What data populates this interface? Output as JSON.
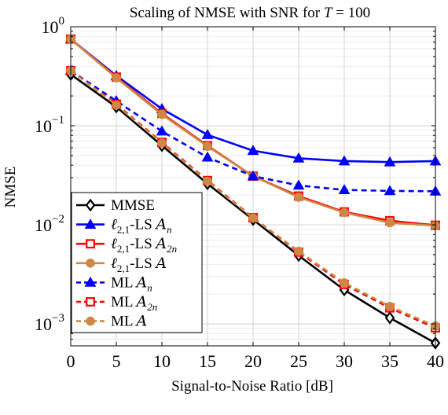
{
  "chart_data": {
    "type": "line",
    "title": "Scaling of NMSE with SNR for T = 100",
    "title_parts": {
      "prefix": "Scaling of NMSE with SNR for ",
      "var": "T",
      "suffix": " = 100"
    },
    "xlabel": "Signal-to-Noise Ratio [dB]",
    "ylabel": "NMSE",
    "xlim": [
      0,
      40
    ],
    "ylim": [
      0.0006,
      1
    ],
    "yscale": "log",
    "grid": true,
    "legend_position": "bottom-left",
    "x_ticks": [
      "0",
      "5",
      "10",
      "15",
      "20",
      "25",
      "30",
      "35",
      "40"
    ],
    "y_ticks": [
      {
        "value": 0.001,
        "base": "10",
        "exp": "−3"
      },
      {
        "value": 0.01,
        "base": "10",
        "exp": "−2"
      },
      {
        "value": 0.1,
        "base": "10",
        "exp": "−1"
      },
      {
        "value": 1,
        "base": "10",
        "exp": "0"
      }
    ],
    "x": [
      0,
      5,
      10,
      15,
      20,
      25,
      30,
      35,
      40
    ],
    "series": [
      {
        "name": "MMSE",
        "legend": {
          "text": "MMSE",
          "sub": "",
          "cal": "",
          "calsub": ""
        },
        "color": "#000000",
        "dash": "solid",
        "marker": "diamond",
        "fill": "#ffffff",
        "values": [
          0.33,
          0.155,
          0.063,
          0.026,
          0.0113,
          0.0049,
          0.0022,
          0.00115,
          0.00064
        ]
      },
      {
        "name": "ℓ2,1-LS An",
        "legend": {
          "text": "ℓ",
          "sub": "2,1",
          "rest": "-LS ",
          "cal": "A",
          "calsub": "n"
        },
        "color": "#0000ff",
        "dash": "solid",
        "marker": "triangle",
        "fill": "#0000ff",
        "values": [
          0.75,
          0.32,
          0.148,
          0.081,
          0.056,
          0.047,
          0.044,
          0.043,
          0.044
        ]
      },
      {
        "name": "ℓ2,1-LS A2n",
        "legend": {
          "text": "ℓ",
          "sub": "2,1",
          "rest": "-LS ",
          "cal": "A",
          "calsub": "2n"
        },
        "color": "#ff0000",
        "dash": "solid",
        "marker": "square",
        "fill": "#ffffff",
        "values": [
          0.75,
          0.31,
          0.133,
          0.063,
          0.031,
          0.0195,
          0.0135,
          0.011,
          0.0099
        ]
      },
      {
        "name": "ℓ2,1-LS A",
        "legend": {
          "text": "ℓ",
          "sub": "2,1",
          "rest": "-LS ",
          "cal": "A",
          "calsub": ""
        },
        "color": "#cc8844",
        "dash": "solid",
        "marker": "circle",
        "fill": "#cc8844",
        "values": [
          0.75,
          0.305,
          0.13,
          0.062,
          0.031,
          0.019,
          0.0133,
          0.0105,
          0.0098
        ]
      },
      {
        "name": "ML An",
        "legend": {
          "text": "ML ",
          "sub": "",
          "rest": "",
          "cal": "A",
          "calsub": "n"
        },
        "color": "#0000ff",
        "dash": "dashed",
        "marker": "triangle",
        "fill": "#0000ff",
        "values": [
          0.36,
          0.178,
          0.088,
          0.048,
          0.031,
          0.025,
          0.0225,
          0.022,
          0.0218
        ]
      },
      {
        "name": "ML A2n",
        "legend": {
          "text": "ML ",
          "sub": "",
          "rest": "",
          "cal": "A",
          "calsub": "2n"
        },
        "color": "#ff0000",
        "dash": "dashed",
        "marker": "square",
        "fill": "#ffffff",
        "values": [
          0.36,
          0.165,
          0.068,
          0.028,
          0.0118,
          0.0053,
          0.0025,
          0.00145,
          0.00091
        ]
      },
      {
        "name": "ML A",
        "legend": {
          "text": "ML ",
          "sub": "",
          "rest": "",
          "cal": "A",
          "calsub": ""
        },
        "color": "#cc8844",
        "dash": "dashed",
        "marker": "circle",
        "fill": "#cc8844",
        "values": [
          0.36,
          0.162,
          0.067,
          0.0275,
          0.0117,
          0.0054,
          0.0026,
          0.0015,
          0.00095
        ]
      }
    ]
  }
}
